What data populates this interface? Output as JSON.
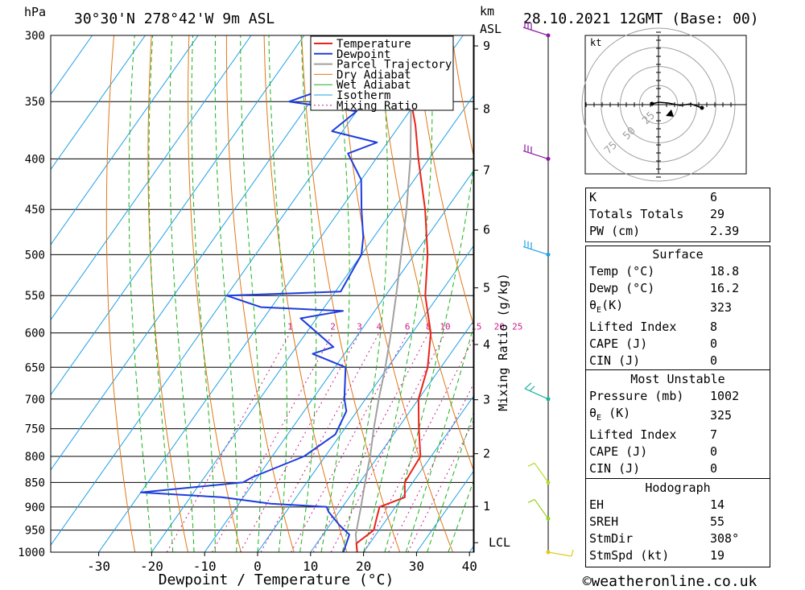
{
  "header": {
    "location": "30°30'N 278°42'W 9m ASL",
    "datetime": "28.10.2021 12GMT (Base: 00)",
    "pressure_unit": "hPa",
    "height_unit_line1": "km",
    "height_unit_line2": "ASL"
  },
  "chart_data": {
    "type": "skew-t",
    "xlabel": "Dewpoint / Temperature (°C)",
    "ylabel_right": "Mixing Ratio (g/kg)",
    "x_ticks": [
      -30,
      -20,
      -10,
      0,
      10,
      20,
      30,
      40
    ],
    "pressure_levels": [
      300,
      350,
      400,
      450,
      500,
      550,
      600,
      650,
      700,
      750,
      800,
      850,
      900,
      950,
      1000
    ],
    "height_ticks_km": [
      1,
      2,
      3,
      4,
      5,
      6,
      7,
      8,
      9
    ],
    "lcl_label": "LCL",
    "mixing_ratio_labels": [
      "1",
      "2",
      "3",
      "4",
      "6",
      "8",
      "10",
      "15",
      "20",
      "25"
    ],
    "legend": [
      "Temperature",
      "Dewpoint",
      "Parcel Trajectory",
      "Dry Adiabat",
      "Wet Adiabat",
      "Isotherm",
      "Mixing Ratio"
    ],
    "series": {
      "temperature": [
        [
          1000,
          18.8
        ],
        [
          980,
          17.5
        ],
        [
          950,
          19
        ],
        [
          925,
          18
        ],
        [
          900,
          17
        ],
        [
          880,
          20.5
        ],
        [
          850,
          18.5
        ],
        [
          800,
          18
        ],
        [
          750,
          14
        ],
        [
          700,
          10
        ],
        [
          650,
          7.5
        ],
        [
          600,
          3.5
        ],
        [
          550,
          -2.5
        ],
        [
          500,
          -7.5
        ],
        [
          450,
          -14
        ],
        [
          400,
          -22
        ],
        [
          370,
          -27
        ],
        [
          350,
          -31
        ],
        [
          320,
          -37
        ],
        [
          300,
          -42
        ]
      ],
      "dewpoint": [
        [
          1000,
          16.2
        ],
        [
          960,
          15
        ],
        [
          940,
          12
        ],
        [
          925,
          10
        ],
        [
          910,
          8
        ],
        [
          900,
          7
        ],
        [
          893,
          -4
        ],
        [
          880,
          -14
        ],
        [
          870,
          -30
        ],
        [
          850,
          -12
        ],
        [
          840,
          -11
        ],
        [
          800,
          -4
        ],
        [
          760,
          -1
        ],
        [
          720,
          -2
        ],
        [
          700,
          -4
        ],
        [
          650,
          -8
        ],
        [
          630,
          -16
        ],
        [
          620,
          -13
        ],
        [
          580,
          -23
        ],
        [
          570,
          -16
        ],
        [
          565,
          -32
        ],
        [
          550,
          -40
        ],
        [
          545,
          -19
        ],
        [
          500,
          -20
        ],
        [
          480,
          -22
        ],
        [
          450,
          -26
        ],
        [
          420,
          -30
        ],
        [
          395,
          -36
        ],
        [
          385,
          -32
        ],
        [
          375,
          -42
        ],
        [
          358,
          -40
        ],
        [
          350,
          -54
        ],
        [
          330,
          -44
        ],
        [
          320,
          -46
        ],
        [
          310,
          -50
        ],
        [
          300,
          -53
        ]
      ],
      "parcel": [
        [
          1000,
          18.8
        ],
        [
          960,
          16.2
        ],
        [
          900,
          13.5
        ],
        [
          850,
          11
        ],
        [
          800,
          8.5
        ],
        [
          750,
          5.5
        ],
        [
          700,
          2.5
        ],
        [
          650,
          -0.5
        ],
        [
          600,
          -4
        ],
        [
          550,
          -8
        ],
        [
          500,
          -12.5
        ],
        [
          450,
          -17.5
        ],
        [
          400,
          -23.5
        ],
        [
          350,
          -31
        ],
        [
          300,
          -40
        ]
      ]
    }
  },
  "hodograph": {
    "unit": "kt",
    "ring_labels": [
      "25",
      "50",
      "75"
    ]
  },
  "wind_barbs_label": "wind profile",
  "indices": {
    "k_label": "K",
    "k_value": "6",
    "tt_label": "Totals Totals",
    "tt_value": "29",
    "pw_label": "PW (cm)",
    "pw_value": "2.39"
  },
  "surface": {
    "title": "Surface",
    "temp_label": "Temp (°C)",
    "temp_value": "18.8",
    "dewp_label": "Dewp (°C)",
    "dewp_value": "16.2",
    "theta_label": "θ",
    "theta_sub": "E",
    "theta_unit": "(K)",
    "theta_value": "323",
    "li_label": "Lifted Index",
    "li_value": "8",
    "cape_label": "CAPE (J)",
    "cape_value": "0",
    "cin_label": "CIN (J)",
    "cin_value": "0"
  },
  "most_unstable": {
    "title": "Most Unstable",
    "pressure_label": "Pressure (mb)",
    "pressure_value": "1002",
    "theta_label": "θ",
    "theta_sub": "E",
    "theta_unit": "(K)",
    "theta_value": "325",
    "li_label": "Lifted Index",
    "li_value": "7",
    "cape_label": "CAPE (J)",
    "cape_value": "0",
    "cin_label": "CIN (J)",
    "cin_value": "0"
  },
  "hodograph_stats": {
    "title": "Hodograph",
    "eh_label": "EH",
    "eh_value": "14",
    "sreh_label": "SREH",
    "sreh_value": "55",
    "stmdir_label": "StmDir",
    "stmdir_value": "308°",
    "stmspd_label": "StmSpd (kt)",
    "stmspd_value": "19"
  },
  "footer": {
    "credit": "©weatheronline.co.uk"
  },
  "colors": {
    "temperature": "#e8241c",
    "dewpoint": "#1e3cdc",
    "parcel": "#a0a0a0",
    "dry_adiabat": "#e07818",
    "wet_adiabat": "#18b418",
    "isotherm": "#1ea0e6",
    "mixing_ratio": "#c81e8c"
  }
}
